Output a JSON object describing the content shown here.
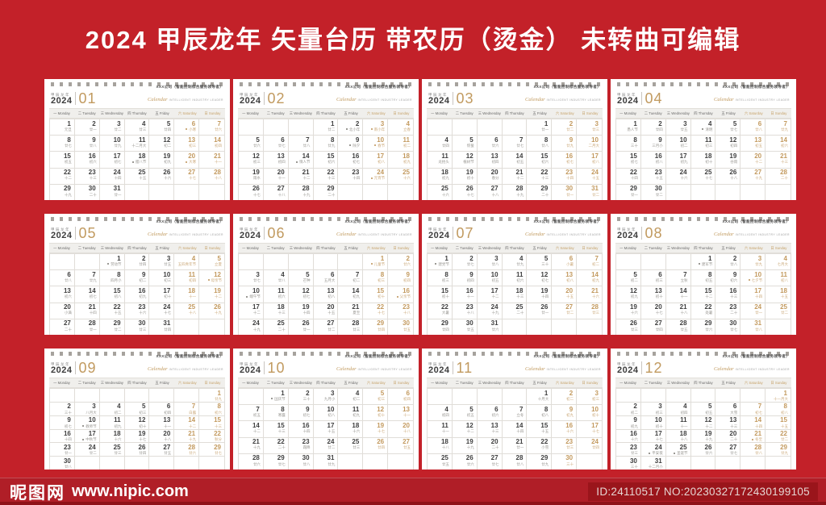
{
  "page": {
    "title": "2024 甲辰龙年 矢量台历 带农历（烫金） 未转曲可编辑",
    "background_color": "#c32129",
    "accent_gold": "#c19a5f",
    "card_color": "#ffffff"
  },
  "card_header": {
    "era": "甲辰龙年",
    "year": "2024",
    "company": "XXX公司（智能控制综合服务领导者）",
    "tagline_script": "Calendar",
    "tagline_caps": "INTELLIGENT INDUSTRY LEADER"
  },
  "weekdays": [
    {
      "zh": "一",
      "en": "Monday"
    },
    {
      "zh": "二",
      "en": "Tuesday"
    },
    {
      "zh": "三",
      "en": "Wednesday"
    },
    {
      "zh": "四",
      "en": "Thursday"
    },
    {
      "zh": "五",
      "en": "Friday"
    },
    {
      "zh": "六",
      "en": "Saturday"
    },
    {
      "zh": "日",
      "en": "Sunday"
    }
  ],
  "months": [
    {
      "num": "01",
      "start": 0,
      "lunar": [
        "元旦",
        "廿一",
        "廿二",
        "廿三",
        "廿四",
        "*小寒",
        "廿六",
        "廿七",
        "廿八",
        "廿九",
        "十二月大",
        "初二",
        "初三",
        "初四",
        "初五",
        "初六",
        "初七",
        "*腊八节",
        "初九",
        "*大寒",
        "十一",
        "十二",
        "十三",
        "十四",
        "十五",
        "十六",
        "十七",
        "十八",
        "十九",
        "二十",
        "廿一"
      ]
    },
    {
      "num": "02",
      "start": 3,
      "lunar": [
        "廿二",
        "*北小年",
        "*南小年",
        "立春",
        "廿六",
        "廿七",
        "廿八",
        "廿九",
        "*除夕",
        "*春节",
        "初二",
        "初三",
        "初四",
        "*情人节",
        "初六",
        "初七",
        "初八",
        "初九",
        "雨水",
        "十一",
        "十二",
        "十三",
        "十四",
        "*元宵节",
        "十六",
        "十七",
        "十八",
        "十九",
        "二十"
      ]
    },
    {
      "num": "03",
      "start": 4,
      "lunar": [
        "廿一",
        "廿二",
        "廿三",
        "廿四",
        "惊蛰",
        "廿六",
        "廿七",
        "廿八",
        "廿九",
        "二月大",
        "龙抬头",
        "植树节",
        "初四",
        "初五",
        "初六",
        "初七",
        "初八",
        "初九",
        "初十",
        "春分",
        "十二",
        "十三",
        "十四",
        "十五",
        "十六",
        "十七",
        "十八",
        "十九",
        "二十",
        "廿一",
        "廿二"
      ]
    },
    {
      "num": "04",
      "start": 0,
      "lunar": [
        "愚人节",
        "廿四",
        "廿五",
        "*清明",
        "廿七",
        "廿八",
        "廿九",
        "三十",
        "三月小",
        "初二",
        "初三",
        "初四",
        "初五",
        "初六",
        "初七",
        "初八",
        "初九",
        "初十",
        "谷雨",
        "十二",
        "十三",
        "十四",
        "十五",
        "十六",
        "十七",
        "十八",
        "十九",
        "二十",
        "廿一",
        "廿二"
      ]
    },
    {
      "num": "05",
      "start": 2,
      "lunar": [
        "*劳动节",
        "廿四",
        "廿五",
        "五四青年节",
        "立夏",
        "廿八",
        "廿九",
        "四月小",
        "初二",
        "初三",
        "初四",
        "*母亲节",
        "初六",
        "初七",
        "初八",
        "初九",
        "初十",
        "十一",
        "十二",
        "小满",
        "十四",
        "十五",
        "十六",
        "十七",
        "十八",
        "十九",
        "二十",
        "廿一",
        "廿二",
        "廿三",
        "廿四"
      ]
    },
    {
      "num": "06",
      "start": 5,
      "lunar": [
        "*儿童节",
        "廿六",
        "廿七",
        "廿八",
        "芒种",
        "五月大",
        "初二",
        "初三",
        "初四",
        "*端午节",
        "初六",
        "初七",
        "初八",
        "初九",
        "初十",
        "*父亲节",
        "十二",
        "十三",
        "十四",
        "十五",
        "夏至",
        "十七",
        "十八",
        "十九",
        "二十",
        "廿一",
        "廿二",
        "廿三",
        "廿四",
        "廿五"
      ]
    },
    {
      "num": "07",
      "start": 0,
      "lunar": [
        "*建党节",
        "廿七",
        "廿八",
        "廿九",
        "三十",
        "小暑",
        "初二",
        "初三",
        "初四",
        "初五",
        "初六",
        "初七",
        "初八",
        "初九",
        "初十",
        "十一",
        "十二",
        "十三",
        "十四",
        "十五",
        "十六",
        "大暑",
        "十八",
        "十九",
        "二十",
        "廿一",
        "廿二",
        "廿三",
        "廿四",
        "廿五",
        "廿六"
      ]
    },
    {
      "num": "08",
      "start": 3,
      "lunar": [
        "*建军节",
        "廿八",
        "廿九",
        "七月大",
        "初二",
        "初三",
        "立秋",
        "初五",
        "初六",
        "*七夕节",
        "初八",
        "初九",
        "初十",
        "十一",
        "十二",
        "十三",
        "十四",
        "十五",
        "十六",
        "十七",
        "十八",
        "处暑",
        "二十",
        "廿一",
        "廿二",
        "廿三",
        "廿四",
        "廿五",
        "廿六",
        "廿七",
        "廿八"
      ]
    },
    {
      "num": "09",
      "start": 6,
      "lunar": [
        "廿九",
        "三十",
        "八月大",
        "初二",
        "初三",
        "初四",
        "白露",
        "初六",
        "初七",
        "*教师节",
        "初九",
        "初十",
        "十一",
        "十二",
        "十三",
        "十四",
        "*中秋节",
        "十六",
        "十七",
        "十八",
        "十九",
        "秋分",
        "廿一",
        "廿二",
        "廿三",
        "廿四",
        "廿五",
        "廿六",
        "廿七",
        "廿八"
      ]
    },
    {
      "num": "10",
      "start": 1,
      "lunar": [
        "*国庆节",
        "三十",
        "九月小",
        "初二",
        "初三",
        "初四",
        "初五",
        "寒露",
        "初七",
        "初八",
        "初九",
        "初十",
        "十一",
        "十二",
        "十三",
        "十四",
        "十五",
        "十六",
        "十七",
        "十八",
        "十九",
        "二十",
        "霜降",
        "廿二",
        "廿三",
        "廿四",
        "廿五",
        "廿六",
        "廿七",
        "廿八",
        "廿九"
      ]
    },
    {
      "num": "11",
      "start": 4,
      "lunar": [
        "十月大",
        "初二",
        "初三",
        "初四",
        "初五",
        "初六",
        "立冬",
        "初八",
        "初九",
        "初十",
        "十一",
        "十二",
        "十三",
        "十四",
        "十五",
        "十六",
        "十七",
        "十八",
        "十九",
        "二十",
        "廿一",
        "小雪",
        "廿三",
        "廿四",
        "廿五",
        "廿六",
        "廿七",
        "廿八",
        "廿九",
        "三十"
      ]
    },
    {
      "num": "12",
      "start": 6,
      "lunar": [
        "十一月大",
        "初二",
        "初三",
        "初四",
        "初五",
        "大雪",
        "初七",
        "初八",
        "初九",
        "初十",
        "十一",
        "十二",
        "十三",
        "十四",
        "十五",
        "十六",
        "十七",
        "十八",
        "十九",
        "二十",
        "*冬至",
        "廿二",
        "廿三",
        "*平安夜",
        "*圣诞节",
        "廿六",
        "廿七",
        "廿八",
        "廿九",
        "三十",
        "十二月小"
      ]
    }
  ],
  "footer": {
    "site_name": "昵图网",
    "site_url": "www.nipic.com",
    "id_text": "ID:24110517 NO:20230327172430199105"
  }
}
